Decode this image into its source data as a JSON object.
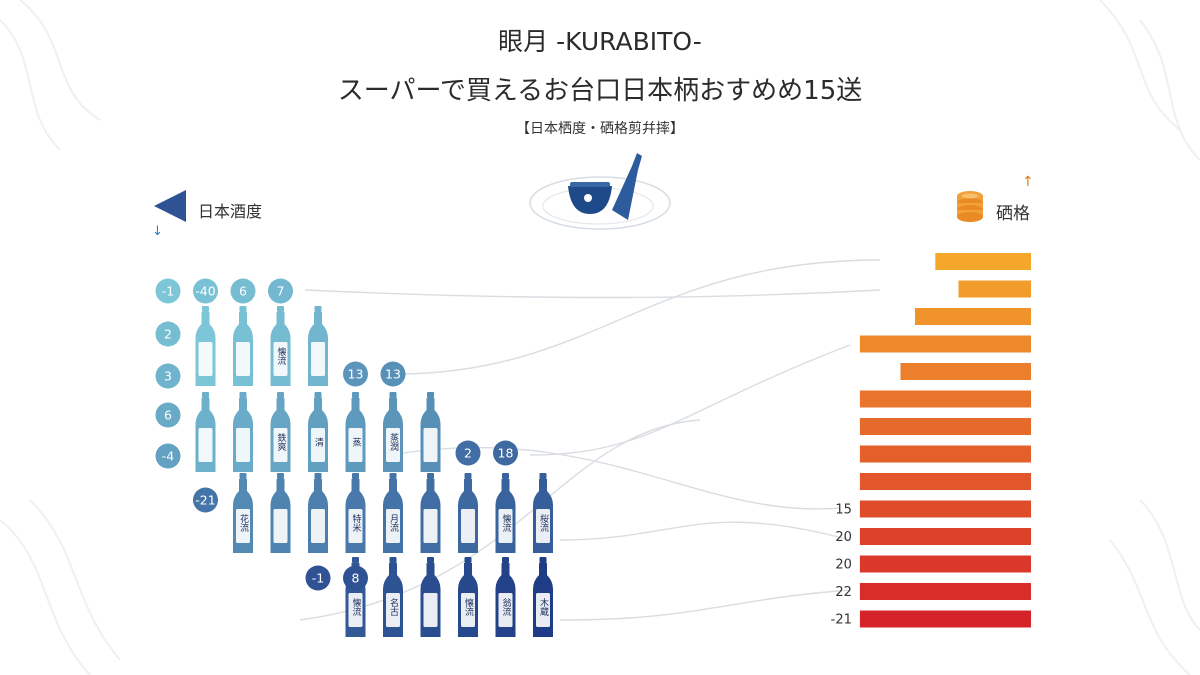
{
  "header": {
    "title_line1": "眼月 -KURABITO-",
    "title_line2": "スーパーで買えるお台口日本柄おすめめ15送",
    "subtitle": "【日本栖度・硒格剪幷摔】"
  },
  "legend": {
    "left_label": "日本酒度",
    "left_icon": "triangle-pointer-icon",
    "left_arrow": "↓",
    "right_label": "硒格",
    "right_icon": "coin-stack-icon",
    "right_arrow": "↑"
  },
  "colors": {
    "bar_start": "#f5a72b",
    "bar_end": "#d4242a",
    "bottle_light": "#7cc6d8",
    "bottle_dark": "#1f3d86",
    "badge_light": "#7cc6d8",
    "badge_dark": "#2e5293",
    "connector": "#d9dde2"
  },
  "chart_data": {
    "type": "bar",
    "orientation": "horizontal",
    "bars": [
      {
        "relative_length": 0.33,
        "label": ""
      },
      {
        "relative_length": 0.25,
        "label": ""
      },
      {
        "relative_length": 0.4,
        "label": ""
      },
      {
        "relative_length": 0.59,
        "label": ""
      },
      {
        "relative_length": 0.45,
        "label": ""
      },
      {
        "relative_length": 0.59,
        "label": ""
      },
      {
        "relative_length": 0.59,
        "label": ""
      },
      {
        "relative_length": 0.59,
        "label": ""
      },
      {
        "relative_length": 0.59,
        "label": ""
      },
      {
        "relative_length": 0.59,
        "label": "15"
      },
      {
        "relative_length": 0.59,
        "label": "20"
      },
      {
        "relative_length": 0.59,
        "label": "20"
      },
      {
        "relative_length": 0.59,
        "label": "22"
      },
      {
        "relative_length": 0.59,
        "label": "-21"
      }
    ],
    "row_badges": [
      {
        "text": "-1"
      },
      {
        "text": "2"
      },
      {
        "text": "3"
      },
      {
        "text": "6"
      },
      {
        "text": "-4"
      }
    ],
    "inline_badges": [
      {
        "row": 0,
        "slot": 1,
        "text": "-40"
      },
      {
        "row": 0,
        "slot": 2,
        "text": "6"
      },
      {
        "row": 0,
        "slot": 3,
        "text": "7"
      },
      {
        "row": 1,
        "slot": 5,
        "text": "13"
      },
      {
        "row": 1,
        "slot": 6,
        "text": "13"
      },
      {
        "row": 2,
        "slot": 8,
        "text": "2"
      },
      {
        "row": 2,
        "slot": 9,
        "text": "18"
      },
      {
        "row": 3,
        "slot": 1,
        "text": "-21"
      },
      {
        "row": 4,
        "slot": 4,
        "text": "-1"
      },
      {
        "row": 4,
        "slot": 5,
        "text": "8"
      }
    ],
    "bottle_rows": [
      {
        "start_slot": 1,
        "count": 4,
        "labels": [
          "",
          "",
          "懐流",
          ""
        ]
      },
      {
        "start_slot": 1,
        "count": 7,
        "labels": [
          "",
          "",
          "鉄爽",
          "清",
          "蒸",
          "蒸潤",
          ""
        ]
      },
      {
        "start_slot": 2,
        "count": 9,
        "labels": [
          "花流",
          "",
          "",
          "特米",
          "月流",
          "",
          "",
          "懐流",
          "桜流"
        ]
      },
      {
        "start_slot": 5,
        "count": 6,
        "labels": [
          "懐流",
          "名古",
          "",
          "懐流",
          "翁流",
          "木蔵"
        ]
      }
    ]
  }
}
